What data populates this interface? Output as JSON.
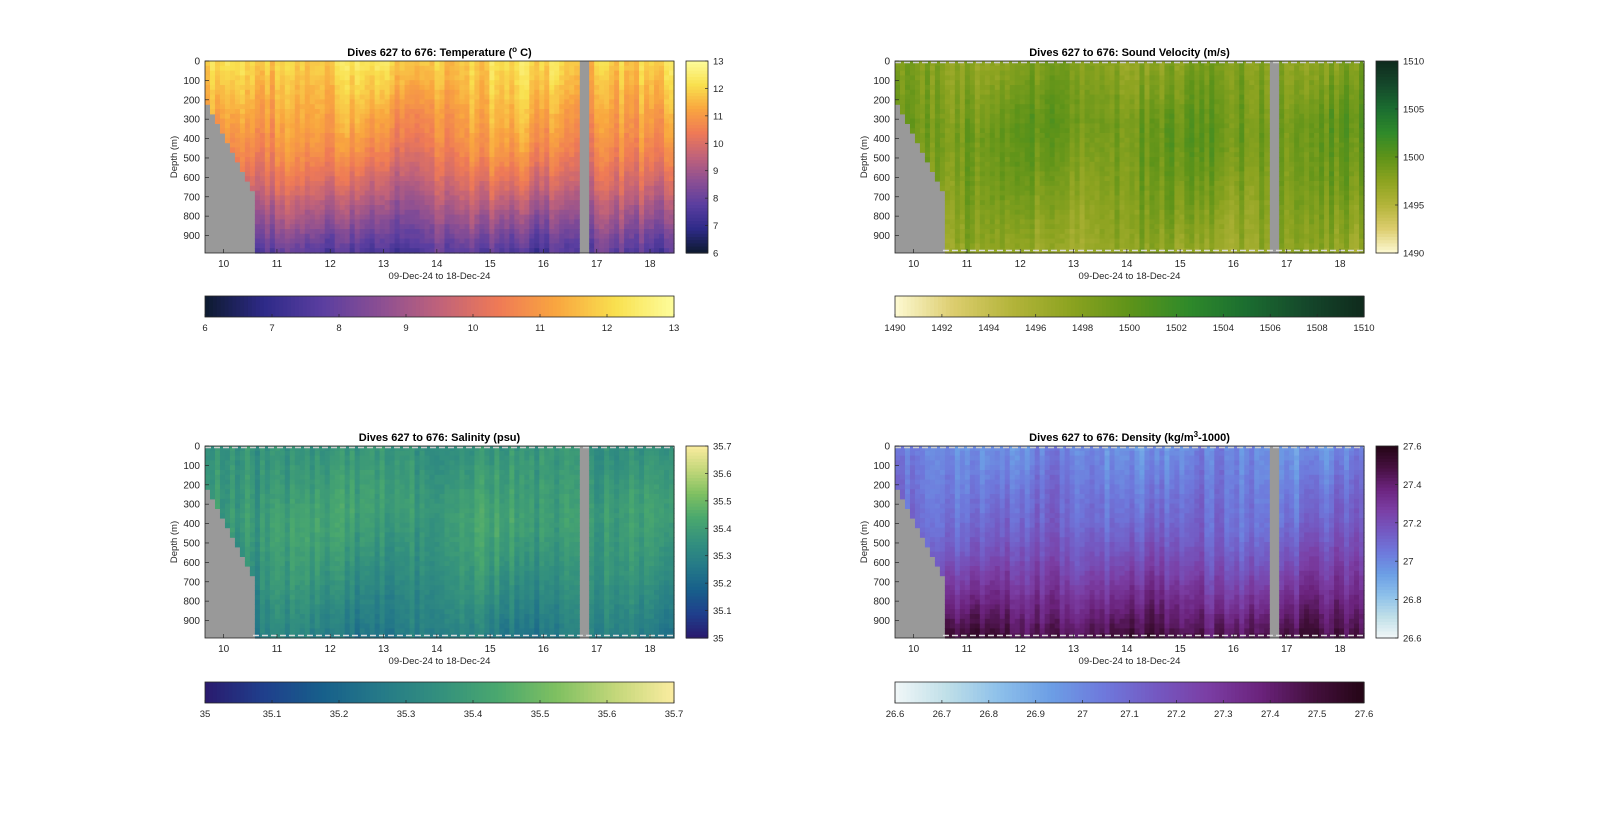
{
  "chart_data": [
    {
      "type": "heatmap",
      "title": "Dives 627 to 676: Temperature (° C)",
      "title_parts": {
        "pre": "Dives 627 to 676: Temperature (",
        "sup": "o",
        "post": " C)"
      },
      "xlabel": "09-Dec-24 to 18-Dec-24",
      "ylabel": "Depth (m)",
      "x_range": [
        9.65,
        18.45
      ],
      "x_ticks": [
        "10",
        "11",
        "12",
        "13",
        "14",
        "15",
        "16",
        "17",
        "18"
      ],
      "y_range": [
        0,
        990
      ],
      "y_ticks": [
        "0",
        "100",
        "200",
        "300",
        "400",
        "500",
        "600",
        "700",
        "800",
        "900"
      ],
      "colorbar_range": [
        6,
        13
      ],
      "side_colorbar_ticks": [
        "6",
        "7",
        "8",
        "9",
        "10",
        "11",
        "12",
        "13"
      ],
      "bottom_colorbar_ticks": [
        "6",
        "7",
        "8",
        "9",
        "10",
        "11",
        "12",
        "13"
      ],
      "colormap": [
        "#0d1a2f",
        "#2e2a88",
        "#5a3ea0",
        "#8c4f93",
        "#c0627a",
        "#ef7a56",
        "#f9a63f",
        "#f9e04e",
        "#fdfd9c"
      ],
      "profile": {
        "surface": 12.0,
        "thermocline": 11.0,
        "deep": 7.6
      },
      "data_gap_day": [
        16.7,
        16.85
      ],
      "dashed_bounds": false
    },
    {
      "type": "heatmap",
      "title": "Dives 627 to 676: Sound Velocity (m/s)",
      "title_parts": {
        "pre": "Dives 627 to 676: Sound Velocity (m/s)",
        "sup": "",
        "post": ""
      },
      "xlabel": "09-Dec-24 to 18-Dec-24",
      "ylabel": "Depth (m)",
      "x_range": [
        9.65,
        18.45
      ],
      "x_ticks": [
        "10",
        "11",
        "12",
        "13",
        "14",
        "15",
        "16",
        "17",
        "18"
      ],
      "y_range": [
        0,
        990
      ],
      "y_ticks": [
        "0",
        "100",
        "200",
        "300",
        "400",
        "500",
        "600",
        "700",
        "800",
        "900"
      ],
      "colorbar_range": [
        1490,
        1510
      ],
      "side_colorbar_ticks": [
        "1490",
        "1495",
        "1500",
        "1505",
        "1510"
      ],
      "bottom_colorbar_ticks": [
        "1490",
        "1492",
        "1494",
        "1496",
        "1498",
        "1500",
        "1502",
        "1504",
        "1506",
        "1508",
        "1510"
      ],
      "colormap": [
        "#fdf9d2",
        "#dccd6e",
        "#b3b43a",
        "#8ca320",
        "#5e9319",
        "#2f8a2a",
        "#1b6d30",
        "#15482b",
        "#0f2a1d"
      ],
      "profile": {
        "surface": 1498.0,
        "thermocline": 1499.5,
        "deep": 1497.0
      },
      "data_gap_day": [
        16.7,
        16.85
      ],
      "dashed_bounds": true
    },
    {
      "type": "heatmap",
      "title": "Dives 627 to 676: Salinity (psu)",
      "title_parts": {
        "pre": "Dives 627 to 676: Salinity (psu)",
        "sup": "",
        "post": ""
      },
      "xlabel": "09-Dec-24 to 18-Dec-24",
      "ylabel": "Depth (m)",
      "x_range": [
        9.65,
        18.45
      ],
      "x_ticks": [
        "10",
        "11",
        "12",
        "13",
        "14",
        "15",
        "16",
        "17",
        "18"
      ],
      "y_range": [
        0,
        990
      ],
      "y_ticks": [
        "0",
        "100",
        "200",
        "300",
        "400",
        "500",
        "600",
        "700",
        "800",
        "900"
      ],
      "colorbar_range": [
        35,
        35.7
      ],
      "side_colorbar_ticks": [
        "35",
        "35.1",
        "35.2",
        "35.3",
        "35.4",
        "35.5",
        "35.6",
        "35.7"
      ],
      "bottom_colorbar_ticks": [
        "35",
        "35.1",
        "35.2",
        "35.3",
        "35.4",
        "35.5",
        "35.6",
        "35.7"
      ],
      "colormap": [
        "#2a1a6e",
        "#1f3f8c",
        "#175f8b",
        "#257a88",
        "#33907e",
        "#4aa86e",
        "#7fc061",
        "#c3d77a",
        "#fbeca0"
      ],
      "profile": {
        "surface": 35.36,
        "thermocline": 35.4,
        "deep": 35.27
      },
      "data_gap_day": [
        16.7,
        16.85
      ],
      "dashed_bounds": true
    },
    {
      "type": "heatmap",
      "title": "Dives 627 to 676: Density (kg/m3-1000)",
      "title_parts": {
        "pre": "Dives 627 to 676: Density (kg/m",
        "sup": "3",
        "post": "-1000)"
      },
      "xlabel": "09-Dec-24 to 18-Dec-24",
      "ylabel": "Depth (m)",
      "x_range": [
        9.65,
        18.45
      ],
      "x_ticks": [
        "10",
        "11",
        "12",
        "13",
        "14",
        "15",
        "16",
        "17",
        "18"
      ],
      "y_range": [
        0,
        990
      ],
      "y_ticks": [
        "0",
        "100",
        "200",
        "300",
        "400",
        "500",
        "600",
        "700",
        "800",
        "900"
      ],
      "colorbar_range": [
        26.6,
        27.6
      ],
      "side_colorbar_ticks": [
        "26.6",
        "26.8",
        "27",
        "27.2",
        "27.4",
        "27.6"
      ],
      "bottom_colorbar_ticks": [
        "26.6",
        "26.7",
        "26.8",
        "26.9",
        "27",
        "27.1",
        "27.2",
        "27.3",
        "27.4",
        "27.5",
        "27.6"
      ],
      "colormap": [
        "#f1f7f8",
        "#bfdfe8",
        "#8dc0ea",
        "#6c9ee5",
        "#6e79dc",
        "#7459c2",
        "#7b3ea4",
        "#6b237d",
        "#45103f",
        "#240515"
      ],
      "profile": {
        "surface": 26.98,
        "thermocline": 27.08,
        "deep": 27.48
      },
      "data_gap_day": [
        16.7,
        16.85
      ],
      "dashed_bounds": true
    }
  ]
}
